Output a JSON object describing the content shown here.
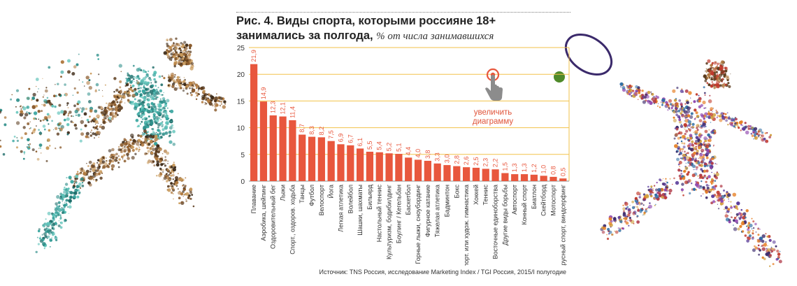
{
  "figure": {
    "title_bold": "Рис. 4. Виды спорта, которыми россияне 18+ занимались за полгода,",
    "title_unit": "% от числа занимавшихся",
    "source": "Источник: TNS Россия, исследование Marketing Index / TGI Россия, 2015/I полугодие",
    "zoom_hint_line1": "увеличить",
    "zoom_hint_line2": "диаграмму"
  },
  "colors": {
    "bar": "#e8573d",
    "value_label": "#e8573d",
    "grid": "#f2c24a",
    "axis_text": "#333333",
    "zoom_hint": "#e0543a"
  },
  "chart_data": {
    "type": "bar",
    "title": "Рис. 4. Виды спорта, которыми россияне 18+ занимались за полгода, % от числа занимавшихся",
    "xlabel": "",
    "ylabel": "",
    "ylim": [
      0,
      25
    ],
    "yticks": [
      0,
      5,
      10,
      15,
      20,
      25
    ],
    "grid": true,
    "legend": "none",
    "categories": [
      "Плавание",
      "Аэробика, шейпинг",
      "Оздоровительный бег",
      "Лыжи",
      "Спорт., оздоров. ходьба",
      "Танцы",
      "Футбол",
      "Велоспорт",
      "Йога",
      "Легкая атлетика",
      "Волейбол",
      "Шашки, шахматы",
      "Бильярд",
      "Настольный теннис",
      "Культуризм, бодибилдинг",
      "Боулинг / Кегельбан",
      "Баскетбол",
      "Горные лыжи, сноубординг",
      "Фигурное катание",
      "Тяжелая атлетика",
      "Бадминтон",
      "Бокс",
      "Спорт. или худож. гимнастика",
      "Хоккей",
      "Теннис",
      "Восточные единоборства",
      "Другие виды борьбы",
      "Автоспорт",
      "Конный спорт",
      "Биатлон",
      "Скейтборд",
      "Мотоспорт",
      "Парусный спорт, виндсерфинг"
    ],
    "values": [
      21.9,
      14.9,
      12.3,
      12.1,
      11.4,
      8.7,
      8.3,
      8.2,
      7.5,
      6.9,
      6.7,
      6.1,
      5.5,
      5.4,
      5.2,
      5.1,
      4.4,
      4.0,
      3.8,
      3.3,
      3.0,
      2.8,
      2.6,
      2.5,
      2.3,
      2.2,
      1.5,
      1.3,
      1.3,
      1.2,
      1.0,
      0.8,
      0.5
    ],
    "value_labels": [
      "21,9",
      "14,9",
      "12,3",
      "12,1",
      "11,4",
      "8,7",
      "8,3",
      "8,2",
      "7,5",
      "6,9",
      "6,7",
      "6,1",
      "5,5",
      "5,4",
      "5,2",
      "5,1",
      "4,4",
      "4,0",
      "3,8",
      "3,3",
      "3,0",
      "2,8",
      "2,6",
      "2,5",
      "2,3",
      "2,2",
      "1,5",
      "1,3",
      "1,3",
      "1,2",
      "1,0",
      "0,8",
      "0,5"
    ]
  }
}
